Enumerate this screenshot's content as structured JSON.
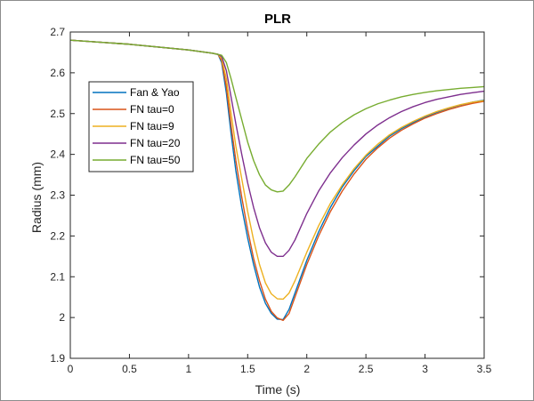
{
  "chart_data": {
    "type": "line",
    "title": "PLR",
    "xlabel": "Time (s)",
    "ylabel": "Radius (mm)",
    "xlim": [
      0,
      3.5
    ],
    "ylim": [
      1.9,
      2.7
    ],
    "xticks": [
      0,
      0.5,
      1,
      1.5,
      2,
      2.5,
      3,
      3.5
    ],
    "xtick_labels": [
      "0",
      "0.5",
      "1",
      "1.5",
      "2",
      "2.5",
      "3",
      "3.5"
    ],
    "yticks": [
      1.9,
      2.0,
      2.1,
      2.2,
      2.3,
      2.4,
      2.5,
      2.6,
      2.7
    ],
    "ytick_labels": [
      "1.9",
      "2",
      "2.1",
      "2.2",
      "2.3",
      "2.4",
      "2.5",
      "2.6",
      "2.7"
    ],
    "grid": false,
    "legend_position": "upper-left",
    "series": [
      {
        "name": "Fan & Yao",
        "color": "#0072BD",
        "x": [
          0,
          0.5,
          1.0,
          1.2,
          1.25,
          1.28,
          1.32,
          1.36,
          1.4,
          1.45,
          1.5,
          1.55,
          1.6,
          1.65,
          1.7,
          1.75,
          1.8,
          1.85,
          1.9,
          2.0,
          2.1,
          2.2,
          2.3,
          2.4,
          2.5,
          2.6,
          2.7,
          2.8,
          2.9,
          3.0,
          3.1,
          3.2,
          3.3,
          3.4,
          3.5
        ],
        "y": [
          2.68,
          2.67,
          2.656,
          2.648,
          2.645,
          2.625,
          2.55,
          2.45,
          2.36,
          2.27,
          2.195,
          2.13,
          2.075,
          2.035,
          2.01,
          1.996,
          1.995,
          2.02,
          2.06,
          2.14,
          2.21,
          2.27,
          2.32,
          2.36,
          2.395,
          2.42,
          2.445,
          2.463,
          2.478,
          2.492,
          2.503,
          2.513,
          2.521,
          2.528,
          2.533
        ]
      },
      {
        "name": "FN tau=0",
        "color": "#D95319",
        "x": [
          0,
          0.5,
          1.0,
          1.2,
          1.25,
          1.28,
          1.32,
          1.36,
          1.4,
          1.45,
          1.5,
          1.55,
          1.6,
          1.65,
          1.7,
          1.75,
          1.8,
          1.85,
          1.9,
          2.0,
          2.1,
          2.2,
          2.3,
          2.4,
          2.5,
          2.6,
          2.7,
          2.8,
          2.9,
          3.0,
          3.1,
          3.2,
          3.3,
          3.4,
          3.5
        ],
        "y": [
          2.68,
          2.67,
          2.656,
          2.648,
          2.645,
          2.63,
          2.565,
          2.47,
          2.385,
          2.295,
          2.215,
          2.145,
          2.09,
          2.045,
          2.015,
          1.999,
          1.993,
          2.01,
          2.05,
          2.13,
          2.2,
          2.26,
          2.31,
          2.352,
          2.388,
          2.416,
          2.44,
          2.459,
          2.475,
          2.489,
          2.5,
          2.51,
          2.518,
          2.525,
          2.53
        ]
      },
      {
        "name": "FN tau=9",
        "color": "#EDB120",
        "x": [
          0,
          0.5,
          1.0,
          1.2,
          1.25,
          1.28,
          1.32,
          1.36,
          1.4,
          1.45,
          1.5,
          1.55,
          1.6,
          1.65,
          1.7,
          1.75,
          1.8,
          1.85,
          1.9,
          2.0,
          2.1,
          2.2,
          2.3,
          2.4,
          2.5,
          2.6,
          2.7,
          2.8,
          2.9,
          3.0,
          3.1,
          3.2,
          3.3,
          3.4,
          3.5
        ],
        "y": [
          2.68,
          2.67,
          2.656,
          2.648,
          2.645,
          2.635,
          2.585,
          2.5,
          2.42,
          2.34,
          2.26,
          2.19,
          2.13,
          2.085,
          2.058,
          2.046,
          2.045,
          2.06,
          2.09,
          2.16,
          2.225,
          2.28,
          2.325,
          2.365,
          2.398,
          2.425,
          2.448,
          2.466,
          2.481,
          2.494,
          2.505,
          2.514,
          2.522,
          2.528,
          2.532
        ]
      },
      {
        "name": "FN tau=20",
        "color": "#7E2F8E",
        "x": [
          0,
          0.5,
          1.0,
          1.2,
          1.25,
          1.28,
          1.32,
          1.36,
          1.4,
          1.45,
          1.5,
          1.55,
          1.6,
          1.65,
          1.7,
          1.75,
          1.8,
          1.85,
          1.9,
          2.0,
          2.1,
          2.2,
          2.3,
          2.4,
          2.5,
          2.6,
          2.7,
          2.8,
          2.9,
          3.0,
          3.1,
          3.2,
          3.3,
          3.4,
          3.5
        ],
        "y": [
          2.68,
          2.67,
          2.656,
          2.648,
          2.645,
          2.64,
          2.605,
          2.54,
          2.475,
          2.4,
          2.33,
          2.27,
          2.22,
          2.183,
          2.16,
          2.15,
          2.15,
          2.165,
          2.19,
          2.255,
          2.31,
          2.355,
          2.392,
          2.423,
          2.45,
          2.472,
          2.49,
          2.505,
          2.517,
          2.527,
          2.535,
          2.541,
          2.547,
          2.551,
          2.555
        ]
      },
      {
        "name": "FN tau=50",
        "color": "#77AC30",
        "x": [
          0,
          0.5,
          1.0,
          1.2,
          1.25,
          1.28,
          1.32,
          1.36,
          1.4,
          1.45,
          1.5,
          1.55,
          1.6,
          1.65,
          1.7,
          1.75,
          1.8,
          1.85,
          1.9,
          2.0,
          2.1,
          2.2,
          2.3,
          2.4,
          2.5,
          2.6,
          2.7,
          2.8,
          2.9,
          3.0,
          3.1,
          3.2,
          3.3,
          3.4,
          3.5
        ],
        "y": [
          2.68,
          2.67,
          2.656,
          2.648,
          2.645,
          2.643,
          2.625,
          2.585,
          2.54,
          2.485,
          2.43,
          2.385,
          2.35,
          2.325,
          2.313,
          2.308,
          2.31,
          2.325,
          2.345,
          2.39,
          2.425,
          2.455,
          2.478,
          2.497,
          2.512,
          2.524,
          2.533,
          2.541,
          2.547,
          2.552,
          2.556,
          2.559,
          2.562,
          2.564,
          2.566
        ]
      }
    ]
  }
}
